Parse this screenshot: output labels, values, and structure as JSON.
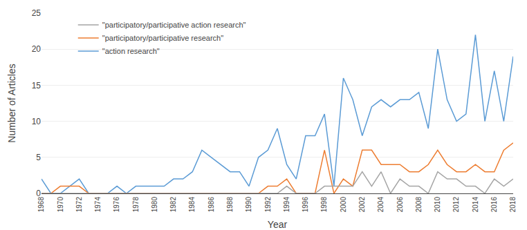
{
  "chart_data": {
    "type": "line",
    "xlabel": "Year",
    "ylabel": "Number of Articles",
    "x": [
      1968,
      1969,
      1970,
      1971,
      1972,
      1973,
      1974,
      1975,
      1976,
      1977,
      1978,
      1979,
      1980,
      1981,
      1982,
      1983,
      1984,
      1985,
      1986,
      1987,
      1988,
      1989,
      1990,
      1991,
      1992,
      1993,
      1994,
      1995,
      1996,
      1997,
      1998,
      1999,
      2000,
      2001,
      2002,
      2003,
      2004,
      2005,
      2006,
      2007,
      2008,
      2009,
      2010,
      2011,
      2012,
      2013,
      2014,
      2015,
      2016,
      2017,
      2018
    ],
    "series": [
      {
        "name": "\"action research\"",
        "color": "#5B9BD5",
        "values": [
          2,
          0,
          0,
          1,
          2,
          0,
          0,
          0,
          1,
          0,
          1,
          1,
          1,
          1,
          2,
          2,
          3,
          6,
          5,
          4,
          3,
          3,
          1,
          5,
          6,
          9,
          4,
          2,
          8,
          8,
          11,
          1,
          16,
          13,
          8,
          12,
          13,
          12,
          13,
          13,
          14,
          9,
          20,
          13,
          10,
          11,
          22,
          10,
          17,
          10,
          19
        ]
      },
      {
        "name": "\"participatory/participative research\"",
        "color": "#ED7D31",
        "values": [
          0,
          0,
          1,
          1,
          1,
          0,
          0,
          0,
          0,
          0,
          0,
          0,
          0,
          0,
          0,
          0,
          0,
          0,
          0,
          0,
          0,
          0,
          0,
          0,
          1,
          1,
          2,
          0,
          0,
          0,
          6,
          0,
          2,
          1,
          6,
          6,
          4,
          4,
          4,
          3,
          3,
          4,
          6,
          4,
          3,
          3,
          4,
          3,
          3,
          6,
          7
        ]
      },
      {
        "name": "\"participatory/participative action research\"",
        "color": "#A5A5A5",
        "values": [
          0,
          0,
          0,
          0,
          0,
          0,
          0,
          0,
          0,
          0,
          0,
          0,
          0,
          0,
          0,
          0,
          0,
          0,
          0,
          0,
          0,
          0,
          0,
          0,
          0,
          0,
          1,
          0,
          0,
          0,
          1,
          1,
          1,
          1,
          3,
          1,
          3,
          0,
          2,
          1,
          1,
          0,
          3,
          2,
          2,
          1,
          1,
          0,
          2,
          1,
          2
        ]
      }
    ],
    "xlim": [
      1968,
      2018
    ],
    "xticks": [
      1968,
      1970,
      1972,
      1974,
      1976,
      1978,
      1980,
      1982,
      1984,
      1986,
      1988,
      1990,
      1992,
      1994,
      1996,
      1998,
      2000,
      2002,
      2004,
      2006,
      2008,
      2010,
      2012,
      2014,
      2016,
      2018
    ],
    "ylim": [
      0,
      25
    ],
    "yticks": [
      0,
      5,
      10,
      15,
      20,
      25
    ],
    "grid": "y",
    "legend": "upper left"
  }
}
